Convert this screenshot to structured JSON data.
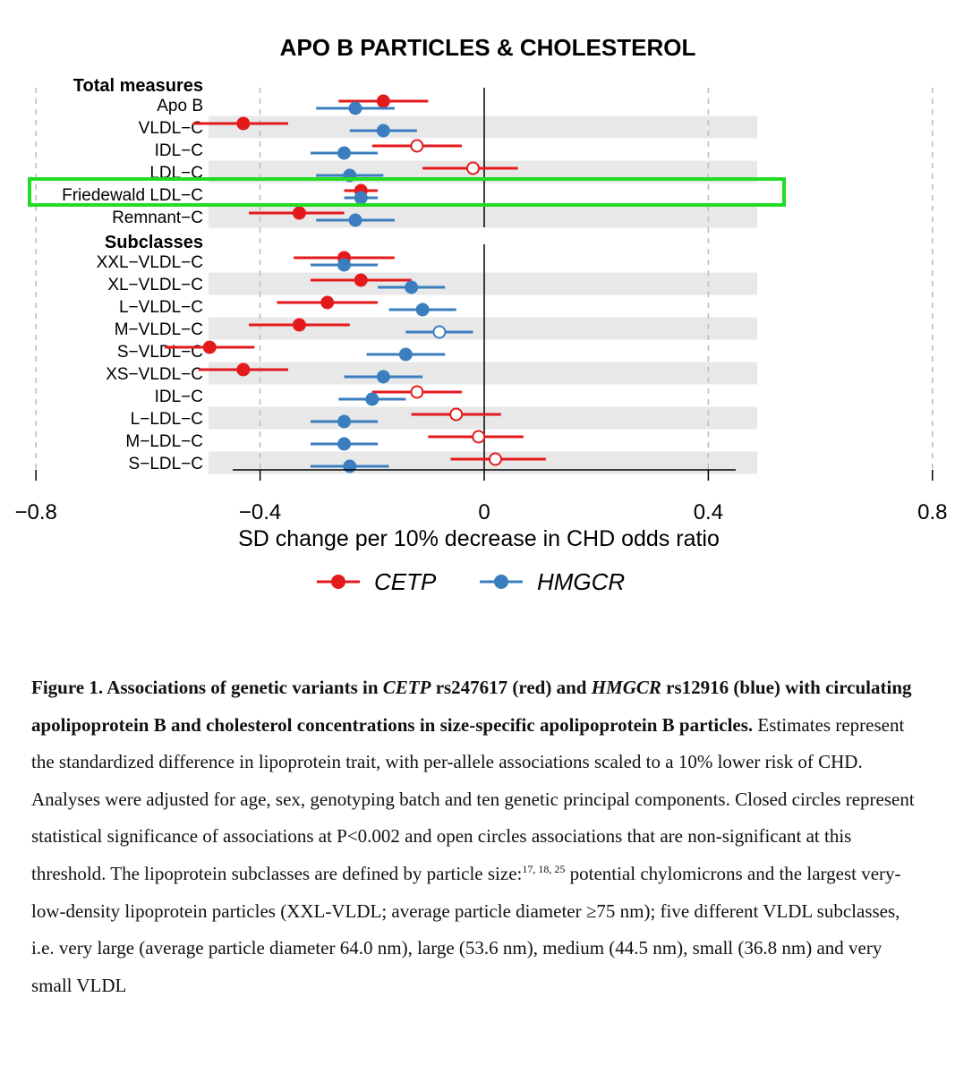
{
  "chart_data": {
    "type": "forest",
    "title": "APO B PARTICLES & CHOLESTEROL",
    "xlabel": "SD change per 10% decrease in CHD odds ratio",
    "xlim": [
      -0.9,
      0.9
    ],
    "xticks": [
      "−0.8",
      "−0.4",
      "0",
      "0.4",
      "0.8"
    ],
    "xtick_values": [
      -0.8,
      -0.4,
      0,
      0.4,
      0.8
    ],
    "groups": [
      {
        "name": "Total measures",
        "rows": [
          "Apo B",
          "VLDL−C",
          "IDL−C",
          "LDL−C",
          "Friedewald LDL−C",
          "Remnant−C"
        ]
      },
      {
        "name": "Subclasses",
        "rows": [
          "XXL−VLDL−C",
          "XL−VLDL−C",
          "L−VLDL−C",
          "M−VLDL−C",
          "S−VLDL−C",
          "XS−VLDL−C",
          "IDL−C",
          "L−LDL−C",
          "M−LDL−C",
          "S−LDL−C"
        ]
      }
    ],
    "highlighted_row": "Friedewald LDL−C",
    "series": [
      {
        "name": "CETP",
        "color": "#e31a1c",
        "estimates": [
          -0.18,
          -0.43,
          -0.12,
          -0.02,
          -0.22,
          -0.33,
          -0.25,
          -0.22,
          -0.28,
          -0.33,
          -0.49,
          -0.43,
          -0.12,
          -0.05,
          -0.01,
          0.02
        ],
        "ci_low": [
          -0.26,
          -0.52,
          -0.2,
          -0.11,
          -0.25,
          -0.42,
          -0.34,
          -0.31,
          -0.37,
          -0.42,
          -0.57,
          -0.51,
          -0.2,
          -0.13,
          -0.1,
          -0.06
        ],
        "ci_high": [
          -0.1,
          -0.35,
          -0.04,
          0.06,
          -0.19,
          -0.25,
          -0.16,
          -0.13,
          -0.19,
          -0.24,
          -0.41,
          -0.35,
          -0.04,
          0.03,
          0.07,
          0.11
        ],
        "significant": [
          true,
          true,
          false,
          false,
          true,
          true,
          true,
          true,
          true,
          true,
          true,
          true,
          false,
          false,
          false,
          false
        ]
      },
      {
        "name": "HMGCR",
        "color": "#3a7ebf",
        "estimates": [
          -0.23,
          -0.18,
          -0.25,
          -0.24,
          -0.22,
          -0.23,
          -0.25,
          -0.13,
          -0.11,
          -0.08,
          -0.14,
          -0.18,
          -0.2,
          -0.25,
          -0.25,
          -0.24
        ],
        "ci_low": [
          -0.3,
          -0.24,
          -0.31,
          -0.3,
          -0.25,
          -0.3,
          -0.31,
          -0.19,
          -0.17,
          -0.14,
          -0.21,
          -0.25,
          -0.26,
          -0.31,
          -0.31,
          -0.31
        ],
        "ci_high": [
          -0.16,
          -0.12,
          -0.19,
          -0.18,
          -0.19,
          -0.16,
          -0.19,
          -0.07,
          -0.05,
          -0.02,
          -0.07,
          -0.11,
          -0.14,
          -0.19,
          -0.19,
          -0.17
        ],
        "significant": [
          true,
          true,
          true,
          true,
          true,
          true,
          true,
          true,
          true,
          false,
          true,
          true,
          true,
          true,
          true,
          true
        ]
      }
    ]
  },
  "caption": {
    "bold_1": "Figure 1. Associations of genetic variants in ",
    "bold_gene_1": "CETP",
    "bold_2": " rs247617 (red) and ",
    "bold_gene_2": "HMGCR",
    "bold_3": " rs12916 (blue) with circulating apolipoprotein B and cholesterol concentrations in size-specific apolipoprotein B particles.",
    "text_1": " Estimates represent the standardized difference in lipoprotein trait, with per-allele associations scaled to a 10% lower risk of CHD. Analyses were adjusted for age, sex, genotyping batch and ten genetic principal components. Closed circles represent statistical significance of associations at P<0.002 and open circles associations that are non-significant at this threshold. The lipoprotein subclasses are defined by particle size:",
    "superscript": "17, 18, 25",
    "text_2": " potential chylomicrons and the largest very-low-density lipoprotein particles (XXL-VLDL; average particle diameter ≥75 nm); five different VLDL subclasses, i.e. very large (average particle diameter 64.0 nm), large (53.6 nm), medium (44.5 nm), small (36.8 nm) and very small VLDL"
  }
}
